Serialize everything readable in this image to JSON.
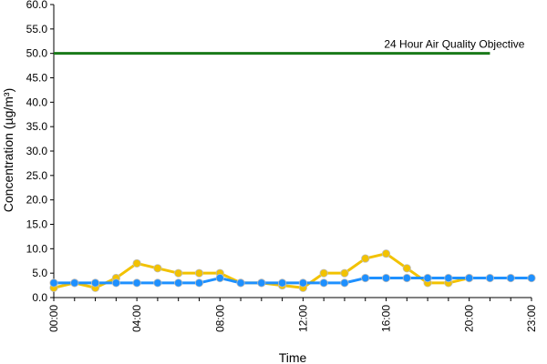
{
  "chart_data": {
    "type": "line",
    "title": "",
    "xlabel": "Time",
    "ylabel": "Concentration (µg/m³)",
    "ylim": [
      0,
      60
    ],
    "yticks": [
      "0.0",
      "5.0",
      "10.0",
      "15.0",
      "20.0",
      "25.0",
      "30.0",
      "35.0",
      "40.0",
      "45.0",
      "50.0",
      "55.0",
      "60.0"
    ],
    "xticks": [
      {
        "hour": 0,
        "label": "00:00"
      },
      {
        "hour": 4,
        "label": "04:00"
      },
      {
        "hour": 8,
        "label": "08:00"
      },
      {
        "hour": 12,
        "label": "12:00"
      },
      {
        "hour": 16,
        "label": "16:00"
      },
      {
        "hour": 20,
        "label": "20:00"
      },
      {
        "hour": 23,
        "label": "23:00"
      }
    ],
    "x": [
      0,
      1,
      2,
      3,
      4,
      5,
      6,
      7,
      8,
      9,
      10,
      11,
      12,
      13,
      14,
      15,
      16,
      17,
      18,
      19,
      20,
      21,
      22,
      23
    ],
    "series": [
      {
        "color": "#f2c200",
        "values": [
          2,
          3,
          2,
          4,
          7,
          6,
          5,
          5,
          5,
          3,
          3,
          2.5,
          2,
          5,
          5,
          8,
          9,
          6,
          3,
          3,
          4,
          null,
          null,
          null
        ]
      },
      {
        "color": "#1e90ff",
        "values": [
          3,
          3,
          3,
          3,
          3,
          3,
          3,
          3,
          4,
          3,
          3,
          3,
          3,
          3,
          3,
          4,
          4,
          4,
          4,
          4,
          4,
          4,
          4,
          4
        ]
      }
    ],
    "reference_line": {
      "label": "24 Hour Air Quality Objective",
      "value": 50,
      "from_hour": 0,
      "to_hour": 21,
      "color": "#1a7a1a"
    },
    "legend": "none",
    "grid": false
  }
}
